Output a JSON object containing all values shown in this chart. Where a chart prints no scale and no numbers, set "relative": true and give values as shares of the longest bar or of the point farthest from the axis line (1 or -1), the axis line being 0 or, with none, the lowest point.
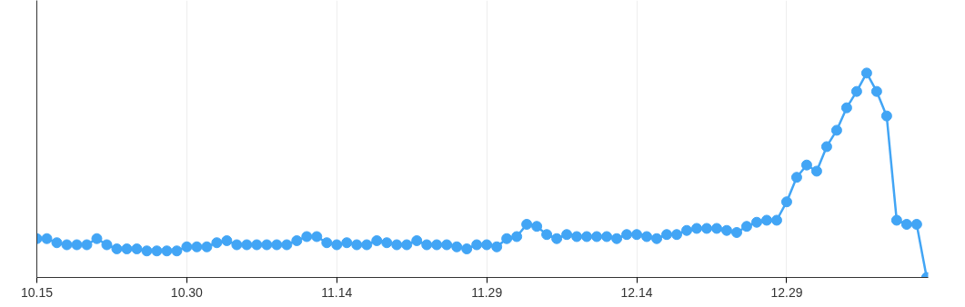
{
  "chart_data": {
    "type": "line",
    "relative": true,
    "color": "#42a5f5",
    "marker": "circle",
    "line_style": "solid",
    "grid": "x",
    "categories": [
      "10.15",
      null,
      null,
      null,
      null,
      null,
      null,
      null,
      null,
      null,
      null,
      null,
      null,
      null,
      null,
      "10.30",
      null,
      null,
      null,
      null,
      null,
      null,
      null,
      null,
      null,
      null,
      null,
      null,
      null,
      null,
      "11.14",
      null,
      null,
      null,
      null,
      null,
      null,
      null,
      null,
      null,
      null,
      null,
      null,
      null,
      null,
      "11.29",
      null,
      null,
      null,
      null,
      null,
      null,
      null,
      null,
      null,
      null,
      null,
      null,
      null,
      null,
      "12.14",
      null,
      null,
      null,
      null,
      null,
      null,
      null,
      null,
      null,
      null,
      null,
      null,
      null,
      null,
      "12.29",
      null,
      null,
      null,
      null,
      null,
      null,
      null,
      null,
      null,
      null,
      null,
      null,
      null,
      null
    ],
    "values": [
      0.19,
      0.19,
      0.17,
      0.16,
      0.16,
      0.16,
      0.19,
      0.16,
      0.14,
      0.14,
      0.14,
      0.13,
      0.13,
      0.13,
      0.13,
      0.15,
      0.15,
      0.15,
      0.17,
      0.18,
      0.16,
      0.16,
      0.16,
      0.16,
      0.16,
      0.16,
      0.18,
      0.2,
      0.2,
      0.17,
      0.16,
      0.17,
      0.16,
      0.16,
      0.18,
      0.17,
      0.16,
      0.16,
      0.18,
      0.16,
      0.16,
      0.16,
      0.15,
      0.14,
      0.16,
      0.16,
      0.15,
      0.19,
      0.2,
      0.26,
      0.25,
      0.21,
      0.19,
      0.21,
      0.2,
      0.2,
      0.2,
      0.2,
      0.19,
      0.21,
      0.21,
      0.2,
      0.19,
      0.21,
      0.21,
      0.23,
      0.24,
      0.24,
      0.24,
      0.23,
      0.22,
      0.25,
      0.27,
      0.28,
      0.28,
      0.37,
      0.49,
      0.55,
      0.52,
      0.64,
      0.72,
      0.83,
      0.91,
      1,
      0.91,
      0.79,
      0.28,
      0.26,
      0.26,
      0
    ]
  }
}
